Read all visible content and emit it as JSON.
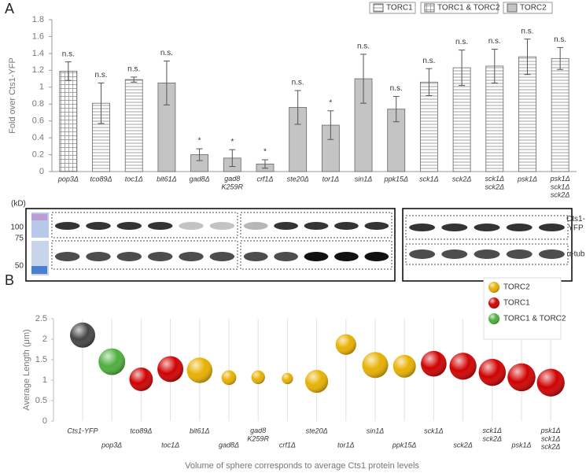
{
  "panel_a": {
    "label": "A"
  },
  "panel_b": {
    "label": "B"
  },
  "blot": {
    "kd_label": "(kD)",
    "markers": [
      "100",
      "75",
      "50"
    ],
    "rows": [
      "Cts1-\nYFP",
      "α-tub"
    ]
  },
  "chart_data": [
    {
      "type": "bar",
      "ylabel": "Fold over Cts1-YFP",
      "categories": [
        "pop3Δ",
        "tco89Δ",
        "toc1Δ",
        "bit61Δ",
        "gad8Δ",
        "gad8\nK259R",
        "crf1Δ",
        "ste20Δ",
        "tor1Δ",
        "sin1Δ",
        "ppk15Δ",
        "sck1Δ",
        "sck2Δ",
        "sck1Δ\nsck2Δ",
        "psk1Δ",
        "psk1Δ\nsck1Δ\nsck2Δ"
      ],
      "values": [
        1.19,
        0.81,
        1.09,
        1.05,
        0.2,
        0.16,
        0.09,
        0.76,
        0.55,
        1.1,
        0.74,
        1.06,
        1.23,
        1.25,
        1.36,
        1.34
      ],
      "errors": [
        0.11,
        0.24,
        0.03,
        0.26,
        0.07,
        0.1,
        0.05,
        0.2,
        0.17,
        0.29,
        0.15,
        0.16,
        0.21,
        0.2,
        0.21,
        0.13
      ],
      "annotations": [
        "n.s.",
        "n.s.",
        "n.s.",
        "n.s.",
        "*",
        "*",
        "*",
        "n.s.",
        "*",
        "n.s.",
        "n.s.",
        "n.s.",
        "n.s.",
        "n.s.",
        "n.s.",
        "n.s."
      ],
      "groups": [
        1,
        0,
        0,
        2,
        2,
        2,
        2,
        2,
        2,
        2,
        2,
        0,
        0,
        0,
        0,
        0
      ],
      "legend": [
        {
          "name": "TORC1",
          "pattern": "hstripes"
        },
        {
          "name": "TORC1 & TORC2",
          "pattern": "grid"
        },
        {
          "name": "TORC2",
          "pattern": "solid"
        }
      ],
      "color": "#c4c4c4",
      "ylim": [
        0,
        1.8
      ],
      "yticks": [
        0,
        0.2,
        0.4,
        0.6,
        0.8,
        1,
        1.2,
        1.4,
        1.6,
        1.8
      ]
    },
    {
      "type": "bubble",
      "ylabel": "Average Length (μm)",
      "xlabel": "Volume of sphere corresponds to average Cts1 protein levels",
      "categories": [
        "Cts1-YFP",
        "pop3Δ",
        "tco89Δ",
        "toc1Δ",
        "bit61Δ",
        "gad8Δ",
        "gad8\nK259R",
        "crf1Δ",
        "ste20Δ",
        "tor1Δ",
        "sin1Δ",
        "ppk15Δ",
        "sck1Δ",
        "sck2Δ",
        "sck1Δ\nsck2Δ",
        "psk1Δ",
        "psk1Δ\nsck1Δ\nsck2Δ"
      ],
      "values": [
        2.1,
        1.45,
        1.02,
        1.27,
        1.24,
        1.06,
        1.07,
        1.04,
        0.97,
        1.87,
        1.37,
        1.34,
        1.4,
        1.34,
        1.19,
        1.07,
        0.94
      ],
      "sizes": [
        1.0,
        1.19,
        0.81,
        1.09,
        1.05,
        0.2,
        0.16,
        0.09,
        0.76,
        0.55,
        1.1,
        0.74,
        1.06,
        1.23,
        1.25,
        1.36,
        1.34
      ],
      "groups": [
        null,
        2,
        1,
        1,
        0,
        0,
        0,
        0,
        0,
        0,
        0,
        0,
        1,
        1,
        1,
        1,
        1
      ],
      "ungrouped_color": "#444444",
      "legend": [
        {
          "name": "TORC2",
          "color": "#e8b000"
        },
        {
          "name": "TORC1",
          "color": "#d00000"
        },
        {
          "name": "TORC1 & TORC2",
          "color": "#4caf3c"
        }
      ],
      "ylim": [
        0,
        2.5
      ],
      "yticks": [
        0,
        0.5,
        1,
        1.5,
        2,
        2.5
      ]
    }
  ]
}
